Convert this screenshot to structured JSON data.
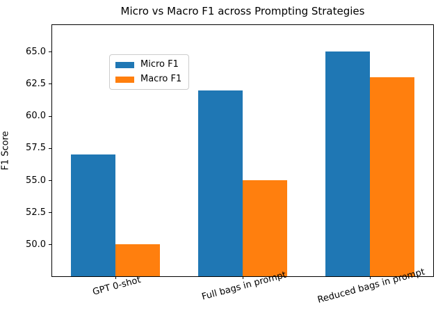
{
  "figure": {
    "background_color": "#ffffff",
    "text_color": "#000000"
  },
  "chart_data": {
    "type": "bar",
    "title": "Micro vs Macro F1 across Prompting Strategies",
    "xlabel": "",
    "ylabel": "F1 Score",
    "categories": [
      "GPT 0-shot",
      "Full bags in prompt",
      "Reduced bags in prompt"
    ],
    "series": [
      {
        "name": "Micro F1",
        "color": "#1f77b4",
        "values": [
          57,
          62,
          65
        ]
      },
      {
        "name": "Macro F1",
        "color": "#ff7f0e",
        "values": [
          50,
          55,
          63
        ]
      }
    ],
    "yticks": [
      50.0,
      52.5,
      55.0,
      57.5,
      60.0,
      62.5,
      65.0
    ],
    "ytick_labels": [
      "50.0",
      "52.5",
      "55.0",
      "57.5",
      "60.0",
      "62.5",
      "65.0"
    ],
    "ylim": [
      47.53,
      67.07
    ],
    "grid": false,
    "legend_position": "upper left",
    "bar_width_fraction": 0.35,
    "xtick_rotation_deg": 15
  }
}
